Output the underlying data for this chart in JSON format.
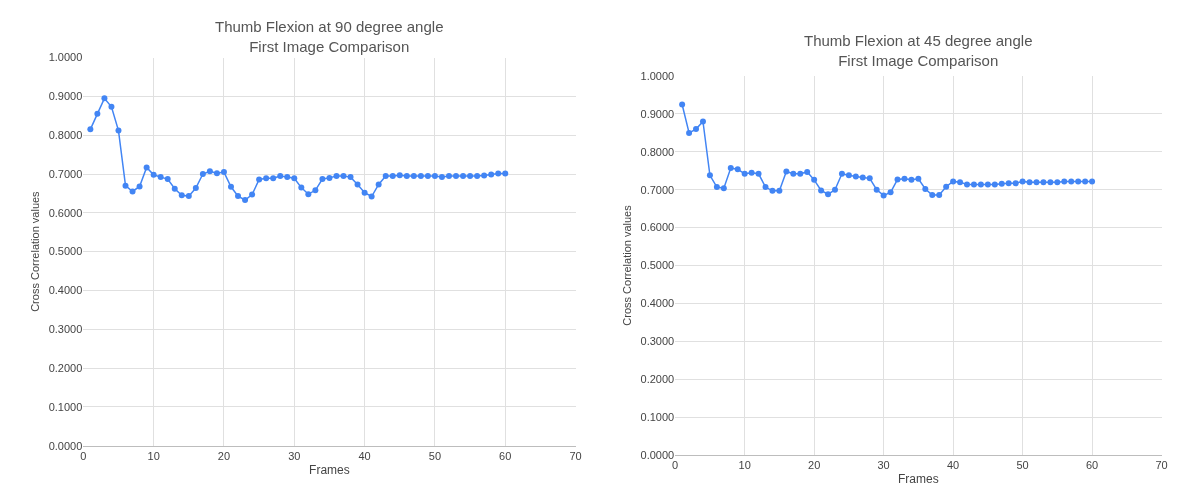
{
  "chart_data": [
    {
      "type": "line",
      "title": "Thumb Flexion at 90 degree angle",
      "subtitle": "First Image Comparison",
      "xlabel": "Frames",
      "ylabel": "Cross Correlation values",
      "marker": "circle",
      "grid": true,
      "x": [
        1,
        2,
        3,
        4,
        5,
        6,
        7,
        8,
        9,
        10,
        11,
        12,
        13,
        14,
        15,
        16,
        17,
        18,
        19,
        20,
        21,
        22,
        23,
        24,
        25,
        26,
        27,
        28,
        29,
        30,
        31,
        32,
        33,
        34,
        35,
        36,
        37,
        38,
        39,
        40,
        41,
        42,
        43,
        44,
        45,
        46,
        47,
        48,
        49,
        50,
        51,
        52,
        53,
        54,
        55,
        56,
        57,
        58,
        59,
        60
      ],
      "series": [
        {
          "color": "#4285f4",
          "values": [
            0.815,
            0.855,
            0.895,
            0.873,
            0.812,
            0.67,
            0.655,
            0.668,
            0.717,
            0.698,
            0.692,
            0.687,
            0.662,
            0.645,
            0.643,
            0.664,
            0.7,
            0.707,
            0.702,
            0.705,
            0.667,
            0.643,
            0.633,
            0.647,
            0.686,
            0.689,
            0.689,
            0.695,
            0.692,
            0.689,
            0.665,
            0.648,
            0.658,
            0.687,
            0.69,
            0.695,
            0.695,
            0.692,
            0.673,
            0.652,
            0.642,
            0.673,
            0.695,
            0.695,
            0.697,
            0.695,
            0.695,
            0.695,
            0.695,
            0.695,
            0.692,
            0.695,
            0.695,
            0.695,
            0.695,
            0.695,
            0.696,
            0.699,
            0.701,
            0.701
          ]
        }
      ],
      "xlim": [
        0,
        70
      ],
      "xticks": [
        0,
        10,
        20,
        30,
        40,
        50,
        60,
        70
      ],
      "ylim": [
        0,
        1
      ],
      "yticks": [
        {
          "value": 0,
          "label": "0.0000"
        },
        {
          "value": 0.1,
          "label": "0.1000"
        },
        {
          "value": 0.2,
          "label": "0.2000"
        },
        {
          "value": 0.3,
          "label": "0.3000"
        },
        {
          "value": 0.4,
          "label": "0.4000"
        },
        {
          "value": 0.5,
          "label": "0.5000"
        },
        {
          "value": 0.6,
          "label": "0.6000"
        },
        {
          "value": 0.7,
          "label": "0.7000"
        },
        {
          "value": 0.8,
          "label": "0.8000"
        },
        {
          "value": 0.9,
          "label": "0.9000"
        },
        {
          "value": 1,
          "label": "1.0000"
        }
      ]
    },
    {
      "type": "line",
      "title": "Thumb Flexion at 45 degree angle",
      "subtitle": "First Image Comparison",
      "xlabel": "Frames",
      "ylabel": "Cross Correlation values",
      "marker": "circle",
      "grid": true,
      "x": [
        1,
        2,
        3,
        4,
        5,
        6,
        7,
        8,
        9,
        10,
        11,
        12,
        13,
        14,
        15,
        16,
        17,
        18,
        19,
        20,
        21,
        22,
        23,
        24,
        25,
        26,
        27,
        28,
        29,
        30,
        31,
        32,
        33,
        34,
        35,
        36,
        37,
        38,
        39,
        40,
        41,
        42,
        43,
        44,
        45,
        46,
        47,
        48,
        49,
        50,
        51,
        52,
        53,
        54,
        55,
        56,
        57,
        58,
        59,
        60
      ],
      "series": [
        {
          "color": "#4285f4",
          "values": [
            0.925,
            0.85,
            0.86,
            0.88,
            0.738,
            0.707,
            0.704,
            0.757,
            0.754,
            0.742,
            0.745,
            0.742,
            0.707,
            0.697,
            0.697,
            0.748,
            0.742,
            0.742,
            0.747,
            0.726,
            0.698,
            0.688,
            0.7,
            0.742,
            0.738,
            0.735,
            0.732,
            0.73,
            0.7,
            0.685,
            0.693,
            0.727,
            0.729,
            0.726,
            0.729,
            0.702,
            0.686,
            0.686,
            0.708,
            0.722,
            0.72,
            0.714,
            0.714,
            0.714,
            0.714,
            0.714,
            0.716,
            0.717,
            0.717,
            0.722,
            0.72,
            0.72,
            0.72,
            0.72,
            0.72,
            0.722,
            0.722,
            0.722,
            0.722,
            0.722
          ]
        }
      ],
      "xlim": [
        0,
        70
      ],
      "xticks": [
        0,
        10,
        20,
        30,
        40,
        50,
        60,
        70
      ],
      "ylim": [
        0,
        1
      ],
      "yticks": [
        {
          "value": 0,
          "label": "0.0000"
        },
        {
          "value": 0.1,
          "label": "0.1000"
        },
        {
          "value": 0.2,
          "label": "0.2000"
        },
        {
          "value": 0.3,
          "label": "0.3000"
        },
        {
          "value": 0.4,
          "label": "0.4000"
        },
        {
          "value": 0.5,
          "label": "0.5000"
        },
        {
          "value": 0.6,
          "label": "0.6000"
        },
        {
          "value": 0.7,
          "label": "0.7000"
        },
        {
          "value": 0.8,
          "label": "0.8000"
        },
        {
          "value": 0.9,
          "label": "0.9000"
        },
        {
          "value": 1,
          "label": "1.0000"
        }
      ]
    }
  ]
}
